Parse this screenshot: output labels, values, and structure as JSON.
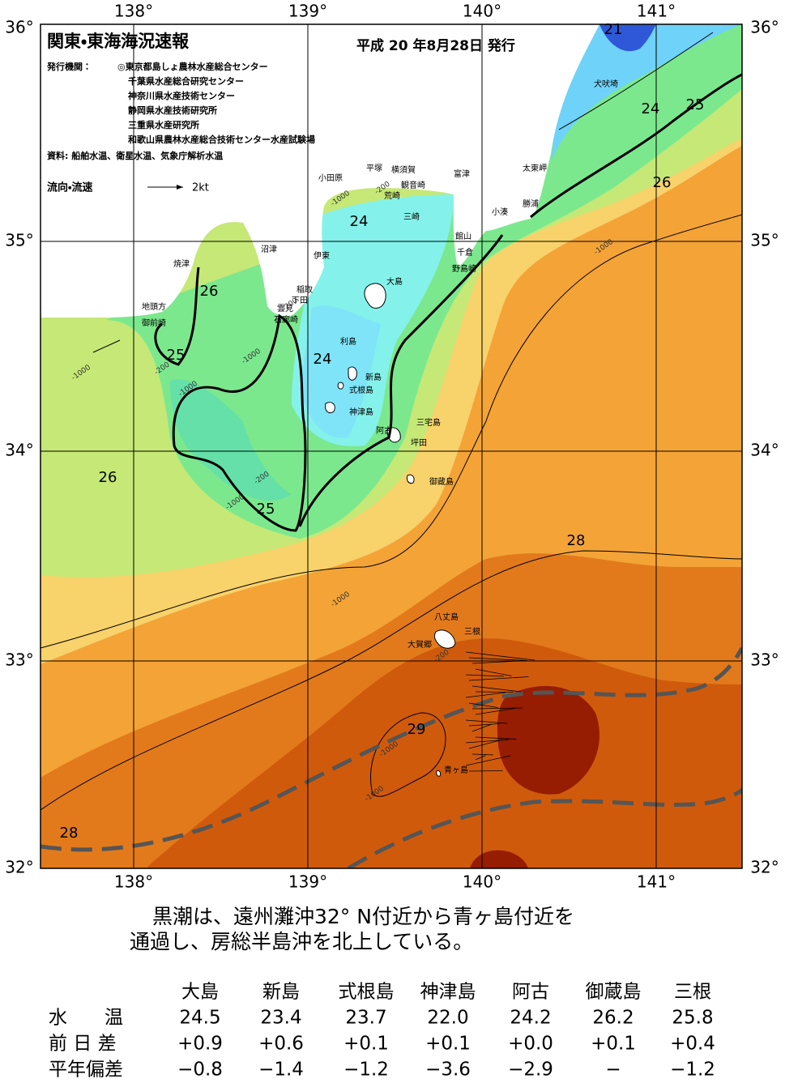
{
  "map": {
    "title": "関東・東海海況速報",
    "issue": "平成 20 年8月28日 発行",
    "agencies_label": "発行機関：",
    "agencies": [
      "◎東京都島しょ農林水産総合センター",
      "千葉県水産総合研究センター",
      "神奈川県水産技術センター",
      "静岡県水産技術研究所",
      "三重県水産研究所",
      "和歌山県農林水産総合技術センター水産試験場"
    ],
    "sources": "資料: 船舶水温、衛星水温、気象庁解析水温",
    "current_legend": "流向・流速",
    "current_scale": "2kt",
    "lon_labels": [
      "138°",
      "139°",
      "140°",
      "141°"
    ],
    "lat_labels": [
      "36°",
      "35°",
      "34°",
      "33°",
      "32°"
    ],
    "places": [
      "犬吠埼",
      "太東岬",
      "勝浦",
      "小湊",
      "富津",
      "館山",
      "千倉",
      "野島崎",
      "平塚",
      "横須賀",
      "観音崎",
      "荒崎",
      "三崎",
      "小田原",
      "伊東",
      "沼津",
      "焼津",
      "稲取",
      "下田",
      "雲見",
      "石廊崎",
      "地頭方",
      "御前崎",
      "大島",
      "利島",
      "新島",
      "式根島",
      "神津島",
      "三宅島",
      "阿古",
      "坪田",
      "御蔵島",
      "八丈島",
      "大賀郷",
      "三根",
      "青ヶ島"
    ],
    "isotherm_labels": [
      "21",
      "24",
      "25",
      "26",
      "24",
      "26",
      "25",
      "24",
      "26",
      "25",
      "28",
      "29",
      "28"
    ],
    "depth_labels": [
      "-1000",
      "-200",
      "-200",
      "-1000",
      "-200",
      "-1000",
      "-1000",
      "-200",
      "-1000",
      "-1000",
      "-1000",
      "-200",
      "-1000",
      "-1000"
    ]
  },
  "summary": [
    "黒潮は、遠州灘沖32° N付近から青ヶ島付近を",
    "通過し、房総半島沖を北上している。"
  ],
  "table": {
    "columns": [
      "大島",
      "新島",
      "式根島",
      "神津島",
      "阿古",
      "御蔵島",
      "三根"
    ],
    "rows": [
      {
        "label": "水　　温",
        "values": [
          "24.5",
          "23.4",
          "23.7",
          "22.0",
          "24.2",
          "26.2",
          "25.8"
        ]
      },
      {
        "label": "前 日 差",
        "values": [
          "+0.9",
          "+0.6",
          "+0.1",
          "+0.1",
          "+0.0",
          "+0.1",
          "+0.4"
        ]
      },
      {
        "label": "平年偏差",
        "values": [
          "−0.8",
          "−1.4",
          "−1.2",
          "−3.6",
          "−2.9",
          "−",
          "−1.2"
        ]
      }
    ]
  }
}
